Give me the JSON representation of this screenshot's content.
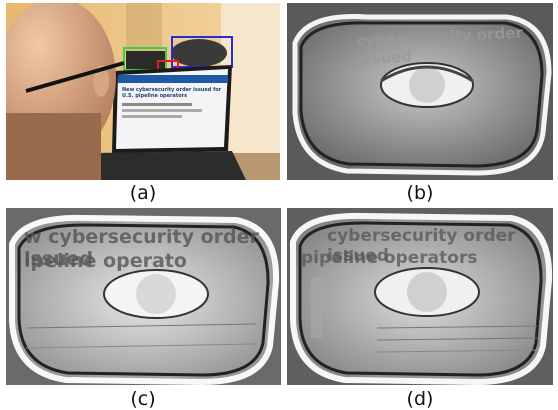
{
  "figure": {
    "captions": {
      "a": "(a)",
      "b": "(b)",
      "c": "(c)",
      "d": "(d)"
    },
    "laptop_screen": {
      "headline": "New cybersecurity order issued for U.S. pipeline operators"
    },
    "reflection_text": {
      "b": "cybersecurity order issued",
      "c_line1": "w cybersecurity order issued",
      "c_line2": "ipeline operato",
      "d_line1": "cybersecurity order issued",
      "d_line2": "pipeline operators"
    },
    "colors": {
      "bbox_green": "#3fd13f",
      "bbox_blue": "#2a2ad8",
      "bbox_red": "#e02020",
      "web_header": "#1e5aa8"
    }
  }
}
